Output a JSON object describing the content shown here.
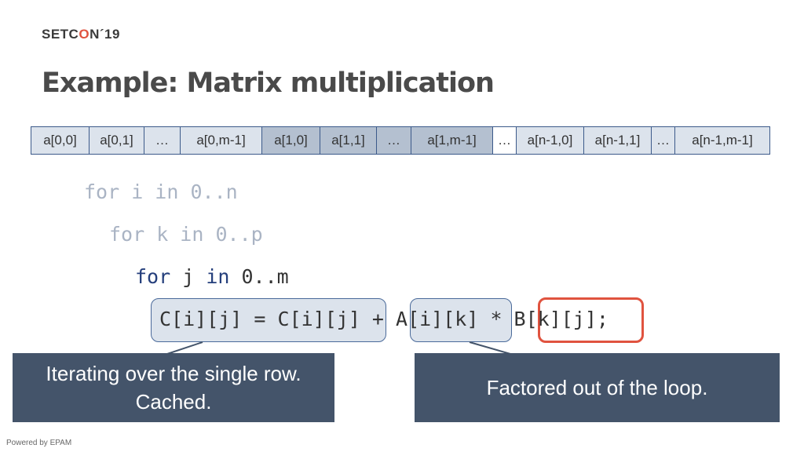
{
  "logo": {
    "text_pre": "SETC",
    "text_o": "O",
    "text_post": "N´19"
  },
  "title": "Example: Matrix multiplication",
  "memory_cells": [
    "a[0,0]",
    "a[0,1]",
    "…",
    "a[0,m-1]",
    "a[1,0]",
    "a[1,1]",
    "…",
    "a[1,m-1]",
    "…",
    "a[n-1,0]",
    "a[n-1,1]",
    "…",
    "a[n-1,m-1]"
  ],
  "code": {
    "line1": "for i in 0..n",
    "line2": "for k in 0..p",
    "line3": {
      "for": "for",
      "var": " j ",
      "in": "in",
      "range": " 0..m"
    },
    "line4": {
      "c": "C[i][j] = C[i][j]",
      "plus": " + ",
      "a": "A[i][k]",
      "times": " * ",
      "b": "B[k][j]",
      "semi": ";"
    }
  },
  "callouts": {
    "left": "Iterating over the single row. Cached.",
    "right": "Factored out of the loop."
  },
  "footer": "Powered by EPAM",
  "colors": {
    "accent": "#e0533f",
    "callout": "#44546a",
    "keyword": "#253f7c"
  }
}
